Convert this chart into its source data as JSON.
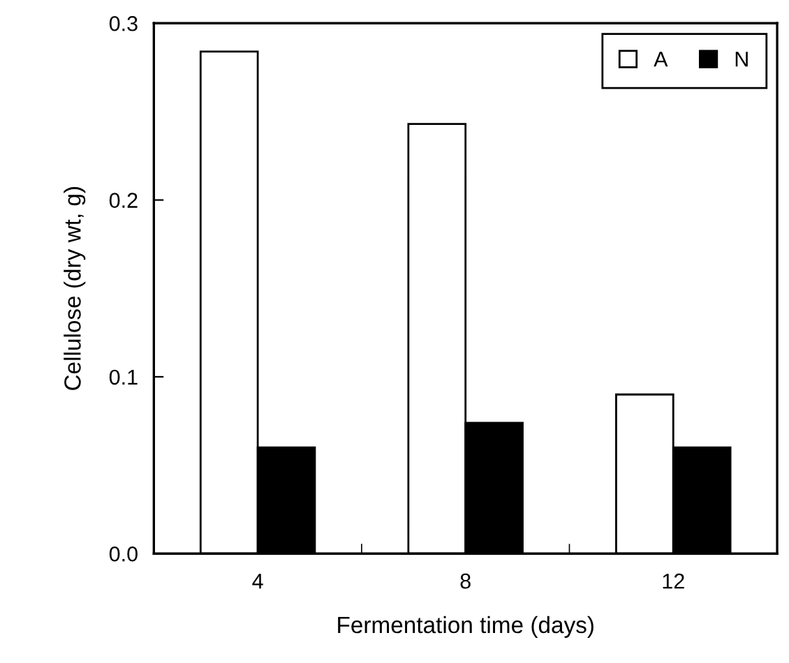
{
  "chart_data": {
    "type": "bar",
    "xlabel": "Fermentation time (days)",
    "ylabel": "Cellulose (dry wt, g)",
    "categories": [
      "4",
      "8",
      "12"
    ],
    "series": [
      {
        "name": "A",
        "color": "#ffffff",
        "values": [
          0.284,
          0.243,
          0.09
        ]
      },
      {
        "name": "N",
        "color": "#000000",
        "values": [
          0.06,
          0.074,
          0.06
        ]
      }
    ],
    "ylim": [
      0,
      0.3
    ],
    "yticks": [
      {
        "value": 0,
        "label": "0.0"
      },
      0.1,
      0.2,
      0.3
    ],
    "grid": false,
    "legend": "top right"
  }
}
